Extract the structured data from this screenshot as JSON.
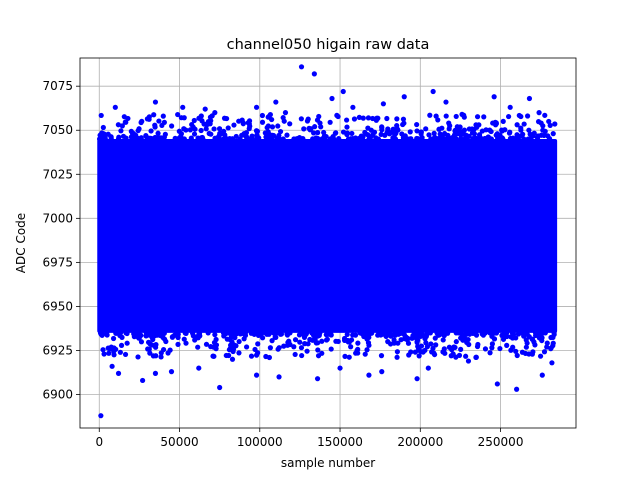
{
  "chart_data": {
    "type": "scatter",
    "title": "channel050 higain raw data",
    "xlabel": "sample number",
    "ylabel": "ADC Code",
    "xlim": [
      -12000,
      297000
    ],
    "ylim": [
      6881,
      7091
    ],
    "x_ticks": [
      0,
      50000,
      100000,
      150000,
      200000,
      250000
    ],
    "x_tick_labels": [
      "0",
      "50000",
      "100000",
      "150000",
      "200000",
      "250000"
    ],
    "y_ticks": [
      6900,
      6925,
      6950,
      6975,
      7000,
      7025,
      7050,
      7075
    ],
    "y_tick_labels": [
      "6900",
      "6925",
      "6950",
      "6975",
      "7000",
      "7025",
      "7050",
      "7075"
    ],
    "grid": true,
    "color": "#0000ff",
    "sample_range": [
      0,
      284000
    ],
    "dense_band": [
      6935,
      7045
    ],
    "points": [
      [
        1000,
        6888
      ],
      [
        3000,
        6923
      ],
      [
        8000,
        6916
      ],
      [
        12000,
        6912
      ],
      [
        27000,
        6908
      ],
      [
        35000,
        6912
      ],
      [
        45000,
        6913
      ],
      [
        62000,
        6915
      ],
      [
        75000,
        6904
      ],
      [
        83000,
        6920
      ],
      [
        98000,
        6911
      ],
      [
        112000,
        6910
      ],
      [
        136000,
        6909
      ],
      [
        150000,
        6915
      ],
      [
        168000,
        6911
      ],
      [
        176000,
        6913
      ],
      [
        198000,
        6909
      ],
      [
        205000,
        6915
      ],
      [
        230000,
        6919
      ],
      [
        248000,
        6906
      ],
      [
        260000,
        6903
      ],
      [
        276000,
        6911
      ],
      [
        282000,
        6918
      ],
      [
        126000,
        7086
      ],
      [
        134000,
        7082
      ],
      [
        10000,
        7063
      ],
      [
        35000,
        7066
      ],
      [
        52000,
        7063
      ],
      [
        66000,
        7062
      ],
      [
        72000,
        7060
      ],
      [
        98000,
        7063
      ],
      [
        110000,
        7066
      ],
      [
        116000,
        7060
      ],
      [
        145000,
        7068
      ],
      [
        152000,
        7072
      ],
      [
        158000,
        7063
      ],
      [
        177000,
        7065
      ],
      [
        190000,
        7069
      ],
      [
        208000,
        7072
      ],
      [
        216000,
        7066
      ],
      [
        226000,
        7059
      ],
      [
        246000,
        7069
      ],
      [
        256000,
        7063
      ],
      [
        268000,
        7068
      ],
      [
        274000,
        7060
      ],
      [
        280000,
        7055
      ]
    ]
  }
}
